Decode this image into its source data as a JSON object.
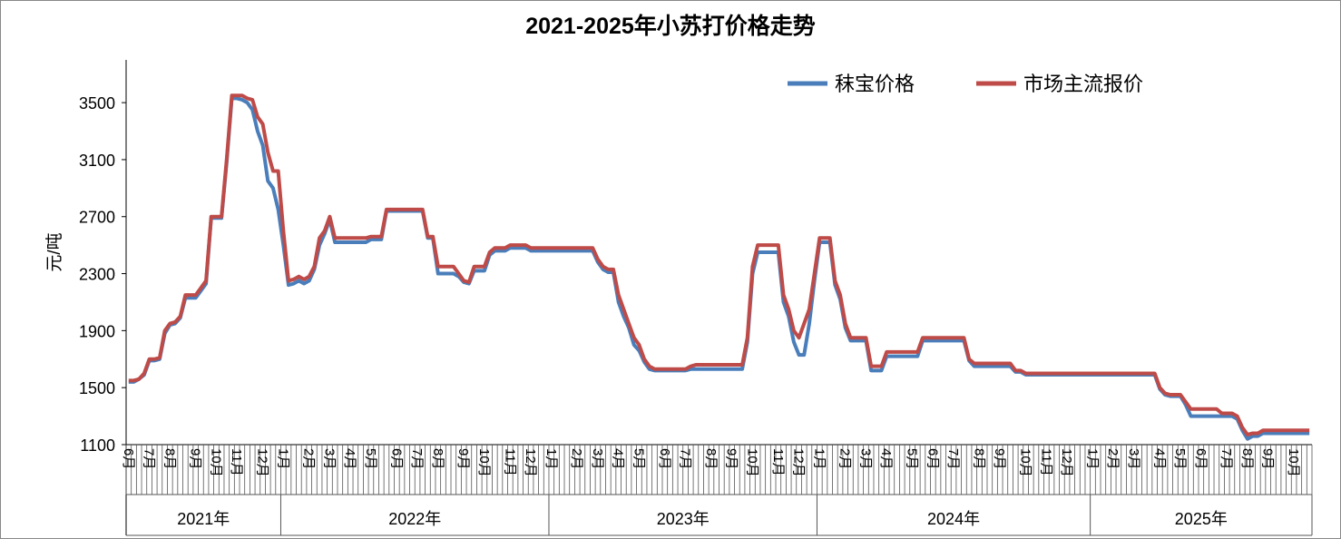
{
  "chart_data": {
    "type": "line",
    "title": "2021-2025年小苏打价格走势",
    "y_label": "元/吨",
    "ylim": [
      1100,
      3800
    ],
    "yticks": [
      1100,
      1500,
      1900,
      2300,
      2700,
      3100,
      3500
    ],
    "legend": "top-right",
    "year_labels": [
      "2021年",
      "2022年",
      "2023年",
      "2024年",
      "2025年"
    ],
    "categories": [
      "6月",
      null,
      null,
      null,
      "7月",
      null,
      null,
      null,
      "8月",
      null,
      null,
      null,
      null,
      "9月",
      null,
      null,
      null,
      "10月",
      null,
      null,
      null,
      "11月",
      null,
      null,
      null,
      null,
      "12月",
      null,
      null,
      null,
      "1月",
      null,
      null,
      null,
      null,
      "2月",
      null,
      null,
      null,
      "3月",
      null,
      null,
      null,
      "4月",
      null,
      null,
      null,
      "5月",
      null,
      null,
      null,
      null,
      "6月",
      null,
      null,
      null,
      "7月",
      null,
      null,
      null,
      "8月",
      null,
      null,
      null,
      null,
      "9月",
      null,
      null,
      null,
      "10月",
      null,
      null,
      null,
      null,
      "11月",
      null,
      null,
      null,
      "12月",
      null,
      null,
      null,
      "1月",
      null,
      null,
      null,
      null,
      "2月",
      null,
      null,
      null,
      "3月",
      null,
      null,
      null,
      "4月",
      null,
      null,
      null,
      "5月",
      null,
      null,
      null,
      null,
      "6月",
      null,
      null,
      null,
      "7月",
      null,
      null,
      null,
      null,
      "8月",
      null,
      null,
      null,
      "9月",
      null,
      null,
      null,
      "10月",
      null,
      null,
      null,
      null,
      "11月",
      null,
      null,
      null,
      "12月",
      null,
      null,
      null,
      "1月",
      null,
      null,
      null,
      null,
      "2月",
      null,
      null,
      null,
      "3月",
      null,
      null,
      null,
      "4月",
      null,
      null,
      null,
      null,
      "5月",
      null,
      null,
      null,
      "6月",
      null,
      null,
      null,
      "7月",
      null,
      null,
      null,
      null,
      "8月",
      null,
      null,
      null,
      "9月",
      null,
      null,
      null,
      null,
      "10月",
      null,
      null,
      null,
      "11月",
      null,
      null,
      null,
      "12月",
      null,
      null,
      null,
      null,
      "1月",
      null,
      null,
      null,
      "2月",
      null,
      null,
      null,
      "3月",
      null,
      null,
      null,
      null,
      "4月",
      null,
      null,
      null,
      "5月",
      null,
      null,
      null,
      "6月",
      null,
      null,
      null,
      null,
      "7月",
      null,
      null,
      null,
      "8月",
      null,
      null,
      null,
      "9月",
      null,
      null,
      null,
      null,
      "10月",
      null,
      null,
      null
    ],
    "series": [
      {
        "name": "秣宝价格",
        "color": "#4a7ebb",
        "values": [
          1540,
          1540,
          1560,
          1590,
          1690,
          1690,
          1700,
          1880,
          1940,
          1950,
          1990,
          2130,
          2130,
          2130,
          2180,
          2230,
          2690,
          2690,
          2690,
          3080,
          3530,
          3530,
          3520,
          3500,
          3450,
          3300,
          3200,
          2950,
          2900,
          2750,
          2500,
          2220,
          2230,
          2250,
          2230,
          2250,
          2330,
          2500,
          2580,
          2680,
          2520,
          2520,
          2520,
          2520,
          2520,
          2520,
          2520,
          2540,
          2540,
          2540,
          2740,
          2740,
          2740,
          2740,
          2740,
          2740,
          2740,
          2740,
          2550,
          2550,
          2300,
          2300,
          2300,
          2300,
          2280,
          2240,
          2230,
          2320,
          2320,
          2320,
          2430,
          2460,
          2460,
          2460,
          2480,
          2480,
          2480,
          2480,
          2460,
          2460,
          2460,
          2460,
          2460,
          2460,
          2460,
          2460,
          2460,
          2460,
          2460,
          2460,
          2460,
          2380,
          2330,
          2310,
          2310,
          2100,
          2000,
          1920,
          1800,
          1760,
          1680,
          1630,
          1620,
          1620,
          1620,
          1620,
          1620,
          1620,
          1620,
          1630,
          1630,
          1630,
          1630,
          1630,
          1630,
          1630,
          1630,
          1630,
          1630,
          1630,
          1820,
          2300,
          2450,
          2450,
          2450,
          2450,
          2450,
          2100,
          2000,
          1820,
          1730,
          1730,
          1950,
          2250,
          2520,
          2520,
          2520,
          2220,
          2120,
          1920,
          1830,
          1830,
          1830,
          1830,
          1620,
          1620,
          1620,
          1720,
          1720,
          1720,
          1720,
          1720,
          1720,
          1720,
          1830,
          1830,
          1830,
          1830,
          1830,
          1830,
          1830,
          1830,
          1830,
          1690,
          1650,
          1650,
          1650,
          1650,
          1650,
          1650,
          1650,
          1650,
          1610,
          1610,
          1590,
          1590,
          1590,
          1590,
          1590,
          1590,
          1590,
          1590,
          1590,
          1590,
          1590,
          1590,
          1590,
          1590,
          1590,
          1590,
          1590,
          1590,
          1590,
          1590,
          1590,
          1590,
          1590,
          1590,
          1590,
          1590,
          1490,
          1450,
          1440,
          1440,
          1440,
          1380,
          1300,
          1300,
          1300,
          1300,
          1300,
          1300,
          1300,
          1300,
          1300,
          1280,
          1200,
          1140,
          1160,
          1160,
          1180,
          1180,
          1180,
          1180,
          1180,
          1180,
          1180,
          1180,
          1180,
          1180
        ]
      },
      {
        "name": "市场主流报价",
        "color": "#be4b48",
        "values": [
          1550,
          1550,
          1560,
          1600,
          1700,
          1700,
          1710,
          1900,
          1950,
          1960,
          2000,
          2150,
          2150,
          2150,
          2200,
          2250,
          2700,
          2700,
          2700,
          3100,
          3550,
          3550,
          3550,
          3530,
          3520,
          3400,
          3350,
          3150,
          3020,
          3020,
          2600,
          2250,
          2260,
          2280,
          2260,
          2280,
          2350,
          2550,
          2600,
          2700,
          2550,
          2550,
          2550,
          2550,
          2550,
          2550,
          2550,
          2560,
          2560,
          2560,
          2750,
          2750,
          2750,
          2750,
          2750,
          2750,
          2750,
          2750,
          2560,
          2560,
          2350,
          2350,
          2350,
          2350,
          2300,
          2250,
          2240,
          2350,
          2350,
          2350,
          2450,
          2480,
          2480,
          2480,
          2500,
          2500,
          2500,
          2500,
          2480,
          2480,
          2480,
          2480,
          2480,
          2480,
          2480,
          2480,
          2480,
          2480,
          2480,
          2480,
          2480,
          2400,
          2350,
          2330,
          2330,
          2150,
          2050,
          1950,
          1850,
          1800,
          1700,
          1650,
          1630,
          1630,
          1630,
          1630,
          1630,
          1630,
          1630,
          1650,
          1660,
          1660,
          1660,
          1660,
          1660,
          1660,
          1660,
          1660,
          1660,
          1660,
          1850,
          2350,
          2500,
          2500,
          2500,
          2500,
          2500,
          2150,
          2050,
          1900,
          1850,
          1950,
          2050,
          2300,
          2550,
          2550,
          2550,
          2250,
          2150,
          1950,
          1850,
          1850,
          1850,
          1850,
          1650,
          1650,
          1650,
          1750,
          1750,
          1750,
          1750,
          1750,
          1750,
          1750,
          1850,
          1850,
          1850,
          1850,
          1850,
          1850,
          1850,
          1850,
          1850,
          1700,
          1670,
          1670,
          1670,
          1670,
          1670,
          1670,
          1670,
          1670,
          1620,
          1620,
          1600,
          1600,
          1600,
          1600,
          1600,
          1600,
          1600,
          1600,
          1600,
          1600,
          1600,
          1600,
          1600,
          1600,
          1600,
          1600,
          1600,
          1600,
          1600,
          1600,
          1600,
          1600,
          1600,
          1600,
          1600,
          1600,
          1500,
          1460,
          1450,
          1450,
          1450,
          1400,
          1350,
          1350,
          1350,
          1350,
          1350,
          1350,
          1320,
          1320,
          1320,
          1300,
          1220,
          1170,
          1180,
          1180,
          1200,
          1200,
          1200,
          1200,
          1200,
          1200,
          1200,
          1200,
          1200,
          1200
        ]
      }
    ]
  }
}
